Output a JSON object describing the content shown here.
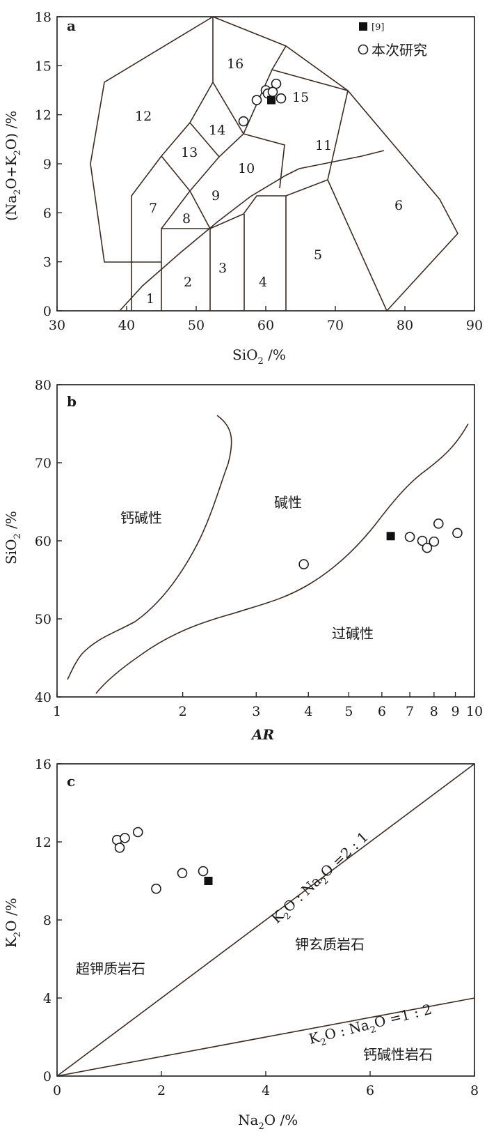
{
  "colors": {
    "axes": "#1a1a1a",
    "boundary": "#3a2a22",
    "marker_fill": "#111111"
  },
  "chart_data": [
    {
      "type": "scatter",
      "panel_label": "a",
      "xlabel_main": "SiO",
      "xlabel_sub": "2",
      "xlabel_unit": " /%",
      "ylabel_parts": [
        "(Na",
        "2",
        "O+K",
        "2",
        "O) /%"
      ],
      "xlim": [
        30,
        90
      ],
      "ylim": [
        0,
        18
      ],
      "xticks": [
        "30",
        "40",
        "50",
        "60",
        "70",
        "80",
        "90"
      ],
      "yticks": [
        "0",
        "3",
        "6",
        "9",
        "12",
        "15",
        "18"
      ],
      "legend": {
        "placement": "top-right",
        "items": [
          {
            "marker": "filled-square",
            "label": "[9]"
          },
          {
            "marker": "open-circle",
            "label": "本次研究"
          }
        ]
      },
      "field_numbers": [
        "1",
        "2",
        "3",
        "4",
        "5",
        "6",
        "7",
        "8",
        "9",
        "10",
        "11",
        "12",
        "13",
        "14",
        "15",
        "16"
      ],
      "series": [
        {
          "marker": "open-circle",
          "points": [
            [
              58.7,
              12.9
            ],
            [
              60,
              13.5
            ],
            [
              60.3,
              13.3
            ],
            [
              61.5,
              13.9
            ],
            [
              61,
              13.4
            ],
            [
              62.2,
              13.0
            ],
            [
              56.8,
              11.6
            ]
          ]
        },
        {
          "marker": "filled-square",
          "points": [
            [
              60.8,
              12.9
            ]
          ]
        }
      ]
    },
    {
      "type": "scatter",
      "panel_label": "b",
      "xlabel": "AR",
      "ylabel_main": "SiO",
      "ylabel_sub": "2",
      "ylabel_unit": " /%",
      "xscale": "log",
      "xlim": [
        1,
        10
      ],
      "ylim": [
        40,
        80
      ],
      "xticks": [
        "1",
        "2",
        "3",
        "4",
        "5",
        "6",
        "7",
        "8",
        "9",
        "10"
      ],
      "yticks": [
        "40",
        "50",
        "60",
        "70",
        "80"
      ],
      "region_labels": [
        "钙碱性",
        "碱性",
        "过碱性"
      ],
      "series": [
        {
          "marker": "open-circle",
          "points": [
            [
              3.9,
              57
            ],
            [
              7.0,
              60.5
            ],
            [
              7.5,
              60
            ],
            [
              7.7,
              59.1
            ],
            [
              8.0,
              59.9
            ],
            [
              8.2,
              62.2
            ],
            [
              9.1,
              61
            ]
          ]
        },
        {
          "marker": "filled-square",
          "points": [
            [
              6.3,
              60.6
            ]
          ]
        }
      ]
    },
    {
      "type": "scatter",
      "panel_label": "c",
      "xlabel_main": "Na",
      "xlabel_sub": "2",
      "xlabel_unit": "O /%",
      "ylabel_main": "K",
      "ylabel_sub": "2",
      "ylabel_unit": "O /%",
      "xlim": [
        0,
        8
      ],
      "ylim": [
        0,
        16
      ],
      "xticks": [
        "0",
        "2",
        "4",
        "6",
        "8"
      ],
      "yticks": [
        "0",
        "4",
        "8",
        "12",
        "16"
      ],
      "lines": [
        {
          "parts": [
            "K",
            "2",
            "O : Na",
            "2",
            "O =2 : 1"
          ],
          "from": [
            0,
            0
          ],
          "to": [
            8,
            16
          ]
        },
        {
          "parts": [
            "K",
            "2",
            "O : Na",
            "2",
            "O =1 : 2"
          ],
          "from": [
            0,
            0
          ],
          "to": [
            8,
            4
          ]
        }
      ],
      "region_labels": [
        "超钾质岩石",
        "钾玄质岩石",
        "钙碱性岩石"
      ],
      "series": [
        {
          "marker": "open-circle",
          "points": [
            [
              1.15,
              12.1
            ],
            [
              1.3,
              12.2
            ],
            [
              1.2,
              11.7
            ],
            [
              1.55,
              12.5
            ],
            [
              1.9,
              9.6
            ],
            [
              2.4,
              10.4
            ],
            [
              2.8,
              10.5
            ]
          ]
        },
        {
          "marker": "filled-square",
          "points": [
            [
              2.9,
              10
            ]
          ]
        }
      ]
    }
  ]
}
